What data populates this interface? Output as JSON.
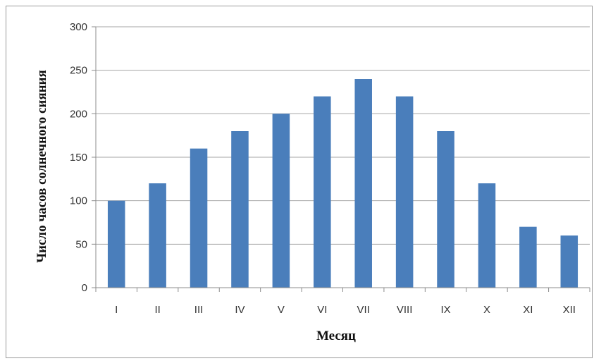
{
  "chart_data": {
    "type": "bar",
    "categories": [
      "I",
      "II",
      "III",
      "IV",
      "V",
      "VI",
      "VII",
      "VIII",
      "IX",
      "X",
      "XI",
      "XII"
    ],
    "values": [
      100,
      120,
      160,
      180,
      200,
      220,
      240,
      220,
      180,
      120,
      70,
      60
    ],
    "xlabel": "Месяц",
    "ylabel": "Число часов солнечного сияния",
    "ylim": [
      0,
      300
    ],
    "yticks": [
      "0",
      "50",
      "100",
      "150",
      "200",
      "250",
      "300"
    ],
    "grid": true,
    "legend": "none",
    "colors": {
      "bar": "#4a7ebb",
      "grid": "#a6a6a6",
      "axis": "#8c8c8c"
    }
  }
}
